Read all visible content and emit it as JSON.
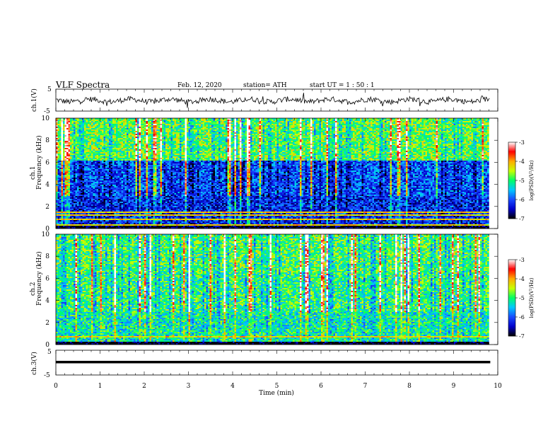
{
  "header": {
    "title": "VLF  Spectra",
    "date": "Feb. 12, 2020",
    "station": "station= ATH",
    "start_ut": "start  UT  =   1  : 50 : 1"
  },
  "chart_data": [
    {
      "type": "line",
      "name": "ch1-waveform",
      "ylabel": "ch.1(V)",
      "ylim": [
        -5,
        5
      ],
      "y_ticks": [
        "5",
        "-5"
      ],
      "x": [
        0,
        9.83
      ],
      "note_values": "noisy waveform near 0 V with small excursions",
      "baseline": 0.3
    },
    {
      "type": "heatmap",
      "name": "ch1-spectrogram",
      "ylabel": "ch.1\nFrequency (kHz)",
      "ylabel_lines": [
        "ch.1",
        "Frequency  (kHz)"
      ],
      "ylim": [
        0,
        10
      ],
      "y_ticks": [
        "0",
        "2",
        "4",
        "6",
        "8",
        "10"
      ],
      "xlim": [
        0,
        10
      ],
      "data_xmax": 9.83,
      "colorbar": {
        "label": "log(PSD)(V²/Hz)",
        "ticks": [
          "-3",
          "-4",
          "-5",
          "-6",
          "-7"
        ],
        "range": [
          -7,
          -3
        ]
      },
      "bands_khz": [
        {
          "from": 0,
          "to": 0.3,
          "level": -7
        },
        {
          "from": 0.3,
          "to": 2.9,
          "level": -6.2
        },
        {
          "from": 2.9,
          "to": 6.2,
          "level": -6.0
        },
        {
          "from": 6.2,
          "to": 10,
          "level": -4.8
        }
      ]
    },
    {
      "type": "heatmap",
      "name": "ch2-spectrogram",
      "ylabel_lines": [
        "ch.2",
        "Frequency  (kHz)"
      ],
      "ylim": [
        0,
        10
      ],
      "y_ticks": [
        "0",
        "2",
        "4",
        "6",
        "8",
        "10"
      ],
      "xlim": [
        0,
        10
      ],
      "data_xmax": 9.83,
      "colorbar": {
        "label": "log(PSD)(V²/Hz)",
        "ticks": [
          "-3",
          "-4",
          "-5",
          "-6",
          "-7"
        ],
        "range": [
          -7,
          -3
        ]
      },
      "bands_khz": [
        {
          "from": 0,
          "to": 0.3,
          "level": -7
        },
        {
          "from": 0.3,
          "to": 3.0,
          "level": -5.2
        },
        {
          "from": 3.0,
          "to": 6.5,
          "level": -5.0
        },
        {
          "from": 6.5,
          "to": 10,
          "level": -4.9
        }
      ]
    },
    {
      "type": "line",
      "name": "ch3-waveform",
      "ylabel": "ch.3(V)",
      "ylim": [
        -5,
        5
      ],
      "y_ticks": [
        "5",
        "-5"
      ],
      "baseline": 0,
      "x": [
        0,
        9.83
      ]
    }
  ],
  "xaxis": {
    "label": "Time  (min)",
    "ticks": [
      "0",
      "1",
      "2",
      "3",
      "4",
      "5",
      "6",
      "7",
      "8",
      "9",
      "10"
    ],
    "xlim": [
      0,
      10
    ]
  },
  "colors": {
    "colormap": [
      "#000000",
      "#0000cc",
      "#1a4cff",
      "#00c8ff",
      "#00ff66",
      "#c8ff00",
      "#ffaa00",
      "#ff0000",
      "#ffffff"
    ]
  }
}
